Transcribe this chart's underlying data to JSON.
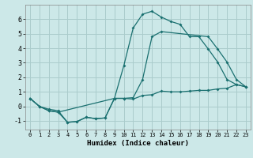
{
  "xlabel": "Humidex (Indice chaleur)",
  "ylabel": "",
  "background_color": "#cce8e8",
  "grid_color": "#aacccc",
  "line_color": "#1a7070",
  "xlim": [
    -0.5,
    23.5
  ],
  "ylim": [
    -1.6,
    7.0
  ],
  "xticks": [
    0,
    1,
    2,
    3,
    4,
    5,
    6,
    7,
    8,
    9,
    10,
    11,
    12,
    13,
    14,
    15,
    16,
    17,
    18,
    19,
    20,
    21,
    22,
    23
  ],
  "yticks": [
    -1,
    0,
    1,
    2,
    3,
    4,
    5,
    6
  ],
  "curve1_x": [
    0,
    1,
    2,
    3,
    4,
    5,
    6,
    7,
    8,
    9,
    10,
    11,
    12,
    13,
    14,
    15,
    16,
    17,
    18,
    19,
    20,
    21,
    22,
    23
  ],
  "curve1_y": [
    0.55,
    0.0,
    -0.3,
    -0.4,
    -1.1,
    -1.05,
    -0.75,
    -0.85,
    -0.8,
    0.55,
    2.8,
    5.4,
    6.35,
    6.55,
    6.15,
    5.85,
    5.65,
    4.8,
    4.8,
    3.95,
    3.05,
    1.85,
    1.5,
    1.35
  ],
  "curve2_x": [
    0,
    1,
    2,
    3,
    9,
    10,
    11,
    12,
    13,
    14,
    19,
    20,
    21,
    22,
    23
  ],
  "curve2_y": [
    0.55,
    0.0,
    -0.3,
    -0.4,
    0.55,
    0.55,
    0.6,
    1.85,
    4.8,
    5.15,
    4.8,
    3.95,
    3.05,
    1.85,
    1.35
  ],
  "curve3_x": [
    0,
    1,
    2,
    3,
    4,
    5,
    6,
    7,
    8,
    9,
    10,
    11,
    12,
    13,
    14,
    15,
    16,
    17,
    18,
    19,
    20,
    21,
    22,
    23
  ],
  "curve3_y": [
    0.55,
    0.0,
    -0.2,
    -0.3,
    -1.1,
    -1.05,
    -0.75,
    -0.85,
    -0.8,
    0.55,
    0.55,
    0.5,
    0.75,
    0.8,
    1.05,
    1.0,
    1.0,
    1.05,
    1.1,
    1.1,
    1.2,
    1.25,
    1.5,
    1.35
  ]
}
